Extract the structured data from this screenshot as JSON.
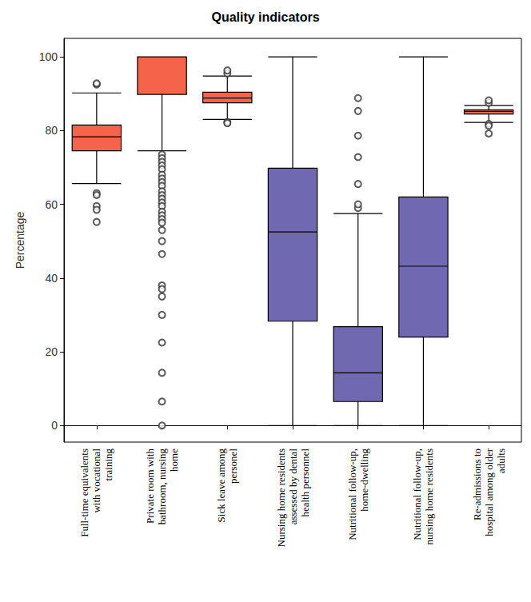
{
  "chart_data": {
    "type": "boxplot",
    "title": "Quality indicators",
    "y_label": "Percentage",
    "categories": [
      "Full-time equivalents\nwith vocational\ntraining",
      "Private room with\nbathroom, nursing\nhome",
      "Sick leave among\npersonel",
      "Nursing home residents\nassessed by dental\nhealth personnel",
      "Nutritional follow-up,\nhome-dwelling",
      "Nutritional follow-up,\nnursing home residents",
      "Re-admissions to\nhospital among older\nadults"
    ],
    "colors": [
      "#f4634a",
      "#f4634a",
      "#f4634a",
      "#7068b0",
      "#7068b0",
      "#7068b0",
      "#f4634a"
    ],
    "boxes": [
      [
        65.6,
        74.5,
        78.3,
        81.5,
        90.2
      ],
      [
        74.5,
        89.8,
        100,
        100,
        100
      ],
      [
        83.0,
        87.5,
        88.8,
        90.4,
        94.8
      ],
      [
        0,
        28.3,
        52.5,
        69.8,
        100
      ],
      [
        0,
        6.5,
        14.3,
        26.8,
        57.5
      ],
      [
        0,
        24.0,
        43.2,
        62.0,
        100
      ],
      [
        82.2,
        84.5,
        85.2,
        85.6,
        86.8
      ]
    ],
    "outliers": [
      [
        92.5,
        92.8,
        63.0,
        62.5,
        59.5,
        58.5,
        55.2
      ],
      [
        73.5,
        72.5,
        71.5,
        70.5,
        69.5,
        68,
        67,
        66,
        65,
        63.5,
        62.5,
        61.5,
        60.5,
        59.5,
        58,
        57,
        56,
        55,
        53,
        50,
        46.5,
        38,
        37,
        35,
        30,
        22.5,
        14.3,
        6.5,
        0
      ],
      [
        95.5,
        96.3,
        82.3,
        82.0
      ],
      [],
      [
        59,
        60,
        65.5,
        72.8,
        78.6,
        85.3,
        88.8
      ],
      [],
      [
        87.5,
        88.2,
        81.8,
        81.3,
        79.2
      ]
    ],
    "marker": "circle",
    "ylim": [
      -4.5,
      105
    ],
    "yticks": [
      0,
      20,
      40,
      60,
      80,
      100
    ],
    "grid": false
  }
}
